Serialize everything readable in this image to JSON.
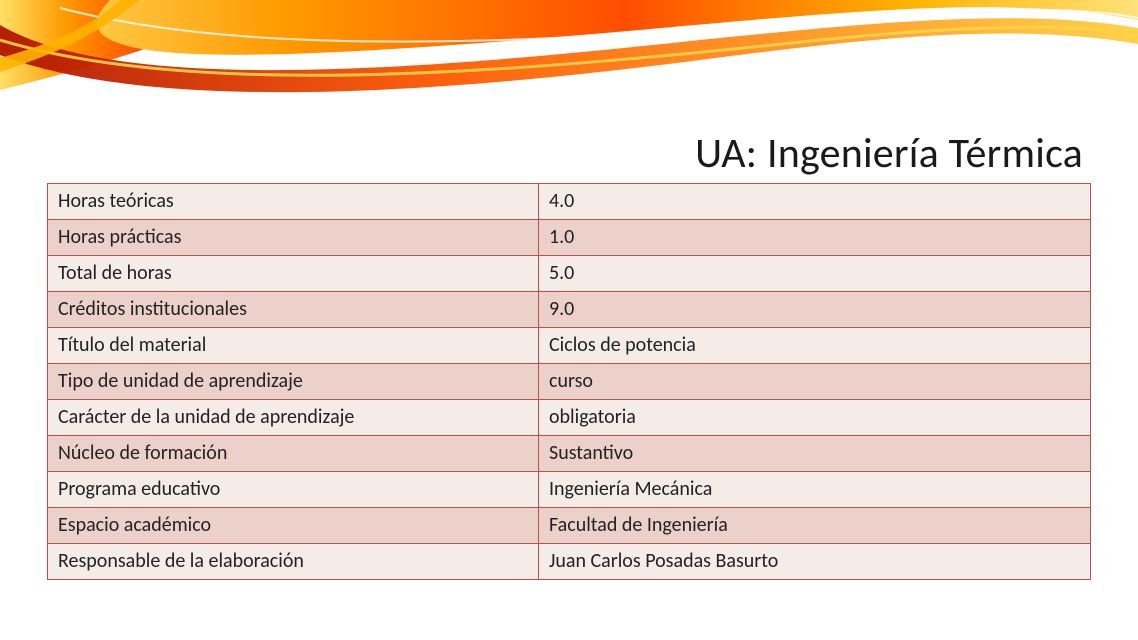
{
  "title": "UA: Ingeniería Térmica",
  "table": {
    "border_color": "#c0504d",
    "row_bg_a": "#f5ece8",
    "row_bg_b": "#ecd1cb",
    "columns": [
      "key",
      "value"
    ],
    "rows": [
      {
        "key": "Horas teóricas",
        "value": "4.0"
      },
      {
        "key": "Horas prácticas",
        "value": "1.0"
      },
      {
        "key": "Total de horas",
        "value": "5.0"
      },
      {
        "key": "Créditos institucionales",
        "value": "9.0"
      },
      {
        "key": "Título del material",
        "value": "Ciclos de potencia"
      },
      {
        "key": "Tipo de unidad de aprendizaje",
        "value": "curso"
      },
      {
        "key": "Carácter de la unidad de aprendizaje",
        "value": "obligatoria"
      },
      {
        "key": "Núcleo de formación",
        "value": "Sustantivo"
      },
      {
        "key": "Programa educativo",
        "value": "Ingeniería Mecánica"
      },
      {
        "key": "Espacio académico",
        "value": "Facultad de Ingeniería"
      },
      {
        "key": "Responsable de la elaboración",
        "value": "Juan Carlos Posadas Basurto"
      }
    ]
  },
  "swoosh": {
    "colors": {
      "yellow": "#ffd400",
      "orange": "#ff8a00",
      "red": "#e63900",
      "deep": "#b01500",
      "white": "#ffffff"
    }
  }
}
